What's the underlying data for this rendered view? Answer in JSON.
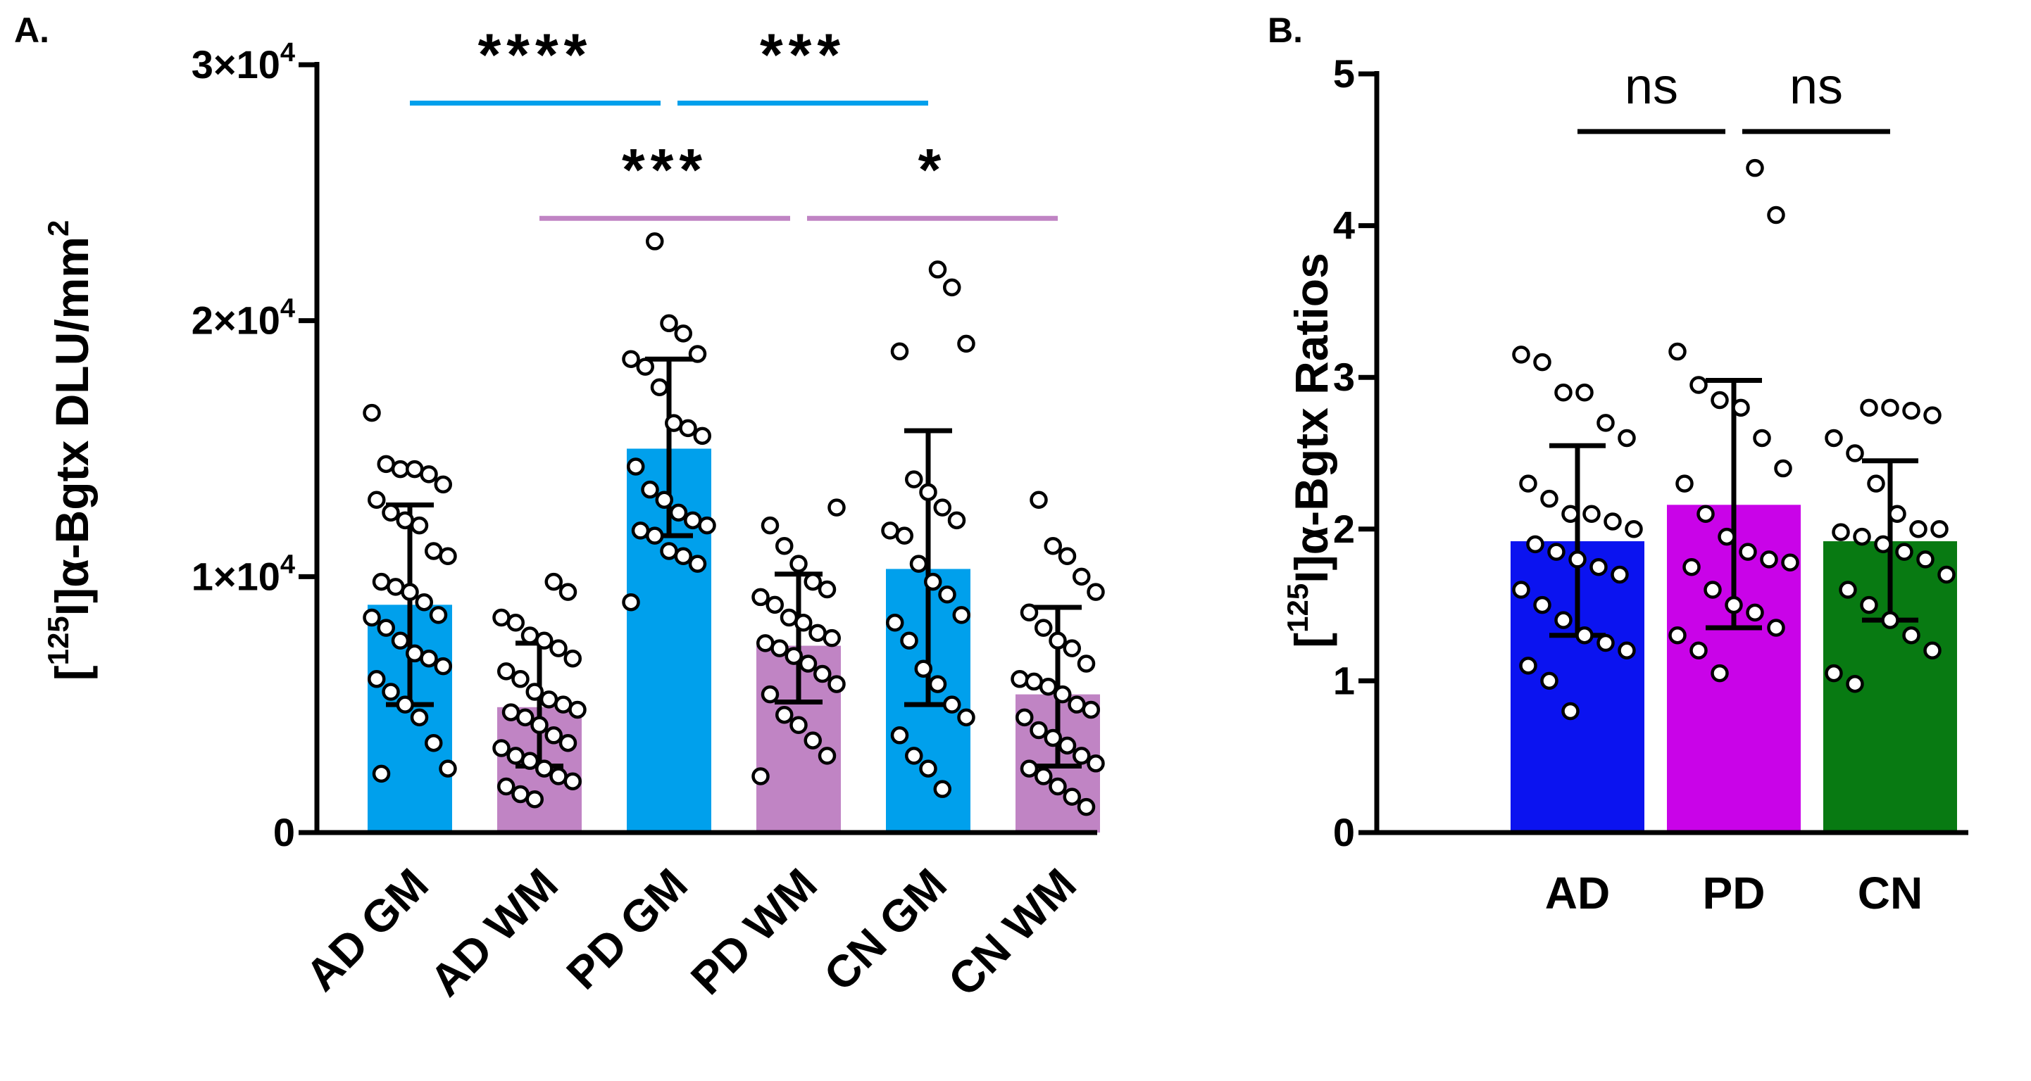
{
  "colors": {
    "gm": "#00a0ec",
    "wm": "#c084c4",
    "ad": "#0b13f0",
    "pd": "#c903e8",
    "cn": "#087a12",
    "axis": "#000000",
    "point_fill": "#ffffff"
  },
  "chart_data": [
    {
      "panel": "A.",
      "type": "bar",
      "title": "",
      "xlabel": "",
      "ylabel": "[125I]α-Bgtx DLU/mm2",
      "ylabel_parts": {
        "open": "[",
        "sup": "125",
        "main": "I]α-Bgtx DLU/mm",
        "sup2": "2"
      },
      "ylim": [
        0,
        30000
      ],
      "yticks": [
        {
          "value": 0,
          "base": "0",
          "exp": ""
        },
        {
          "value": 10000,
          "base": "1×10",
          "exp": "4"
        },
        {
          "value": 20000,
          "base": "2×10",
          "exp": "4"
        },
        {
          "value": 30000,
          "base": "3×10",
          "exp": "4"
        }
      ],
      "categories": [
        "AD GM",
        "AD WM",
        "PD GM",
        "PD WM",
        "CN GM",
        "CN WM"
      ],
      "bar_colors": [
        "gm",
        "wm",
        "gm",
        "wm",
        "gm",
        "wm"
      ],
      "values": [
        8900,
        4900,
        15000,
        7300,
        10300,
        5400
      ],
      "sd_low": [
        5000,
        2600,
        11600,
        5100,
        5000,
        2600
      ],
      "sd_high": [
        12800,
        7400,
        18500,
        10100,
        15700,
        8800
      ],
      "points": [
        [
          16400,
          14400,
          14200,
          14200,
          14000,
          13600,
          13000,
          12500,
          12200,
          12000,
          11000,
          10800,
          9800,
          9600,
          9400,
          9000,
          8500,
          8400,
          8000,
          7500,
          7000,
          6800,
          6500,
          6000,
          5500,
          5000,
          4500,
          3500,
          2500,
          2300
        ],
        [
          9800,
          9400,
          8400,
          8200,
          7700,
          7500,
          7200,
          6800,
          6300,
          6000,
          5500,
          5200,
          5000,
          4800,
          4700,
          4500,
          4200,
          3800,
          3500,
          3300,
          3000,
          2800,
          2500,
          2200,
          2000,
          1800,
          1500,
          1300
        ],
        [
          23100,
          19900,
          19500,
          18700,
          18500,
          18200,
          17400,
          16000,
          15800,
          15500,
          14300,
          13400,
          13000,
          12500,
          12200,
          12000,
          11800,
          11600,
          11000,
          10800,
          10500,
          9000
        ],
        [
          12700,
          12000,
          11200,
          10500,
          9800,
          9500,
          9200,
          8900,
          8400,
          8200,
          7800,
          7600,
          7400,
          7200,
          6900,
          6600,
          6200,
          5800,
          5400,
          4600,
          4200,
          3600,
          3000,
          2200
        ],
        [
          22000,
          21300,
          19100,
          18800,
          13800,
          13300,
          12700,
          12200,
          11800,
          11600,
          10500,
          9800,
          9300,
          8500,
          8200,
          7500,
          6400,
          5800,
          5000,
          4500,
          3800,
          3000,
          2500,
          1700
        ],
        [
          13000,
          11200,
          10800,
          10000,
          9400,
          8600,
          8000,
          7500,
          7200,
          6600,
          6000,
          5900,
          5700,
          5400,
          5000,
          4800,
          4500,
          4000,
          3700,
          3400,
          3000,
          2700,
          2500,
          2200,
          1800,
          1400,
          1000
        ]
      ],
      "significance": [
        {
          "label": "****",
          "from": 0,
          "to": 2,
          "color": "gm",
          "level": 28500
        },
        {
          "label": "***",
          "from": 2,
          "to": 4,
          "color": "gm",
          "level": 28500
        },
        {
          "label": "***",
          "from": 1,
          "to": 3,
          "color": "wm",
          "level": 24000
        },
        {
          "label": "*",
          "from": 3,
          "to": 5,
          "color": "wm",
          "level": 24000
        }
      ]
    },
    {
      "panel": "B.",
      "type": "bar",
      "title": "",
      "xlabel": "",
      "ylabel": "[125I]α-Bgtx Ratios",
      "ylabel_parts": {
        "open": "[",
        "sup": "125",
        "main": "I]α-Bgtx Ratios",
        "sup2": ""
      },
      "ylim": [
        0,
        5
      ],
      "yticks": [
        {
          "value": 0,
          "base": "0",
          "exp": ""
        },
        {
          "value": 1,
          "base": "1",
          "exp": ""
        },
        {
          "value": 2,
          "base": "2",
          "exp": ""
        },
        {
          "value": 3,
          "base": "3",
          "exp": ""
        },
        {
          "value": 4,
          "base": "4",
          "exp": ""
        },
        {
          "value": 5,
          "base": "5",
          "exp": ""
        }
      ],
      "categories": [
        "AD",
        "PD",
        "CN"
      ],
      "bar_colors": [
        "ad",
        "pd",
        "cn"
      ],
      "values": [
        1.92,
        2.16,
        1.92
      ],
      "sd_low": [
        1.3,
        1.35,
        1.4
      ],
      "sd_high": [
        2.55,
        2.98,
        2.45
      ],
      "points": [
        [
          3.15,
          3.1,
          2.9,
          2.9,
          2.7,
          2.6,
          2.3,
          2.2,
          2.1,
          2.1,
          2.05,
          2.0,
          1.9,
          1.85,
          1.8,
          1.75,
          1.7,
          1.6,
          1.5,
          1.4,
          1.3,
          1.25,
          1.2,
          1.1,
          1.0,
          0.8
        ],
        [
          4.38,
          4.07,
          3.17,
          2.95,
          2.85,
          2.8,
          2.6,
          2.4,
          2.3,
          2.1,
          1.95,
          1.85,
          1.8,
          1.78,
          1.75,
          1.6,
          1.5,
          1.45,
          1.35,
          1.3,
          1.2,
          1.05
        ],
        [
          2.8,
          2.8,
          2.78,
          2.75,
          2.6,
          2.5,
          2.3,
          2.1,
          2.0,
          2.0,
          1.98,
          1.95,
          1.9,
          1.85,
          1.8,
          1.7,
          1.6,
          1.5,
          1.4,
          1.3,
          1.2,
          1.05,
          0.98
        ]
      ],
      "significance": [
        {
          "label": "ns",
          "from": 0,
          "to": 1,
          "color": "axis",
          "level": 4.62
        },
        {
          "label": "ns",
          "from": 1,
          "to": 2,
          "color": "axis",
          "level": 4.62
        }
      ]
    }
  ]
}
